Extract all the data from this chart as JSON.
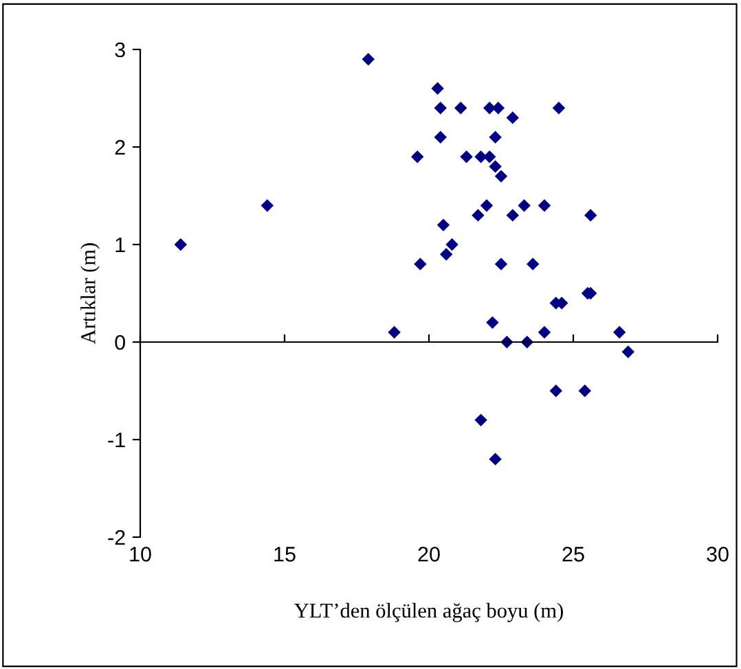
{
  "chart_data": {
    "type": "scatter",
    "xlabel": "YLT’den ölçülen ağaç boyu (m)",
    "ylabel": "Artıklar (m)",
    "series": [
      {
        "color": "#000080",
        "x": [
          11.4,
          14.4,
          17.9,
          18.8,
          19.6,
          19.7,
          20.3,
          20.4,
          20.4,
          20.5,
          20.6,
          20.8,
          21.1,
          21.3,
          21.7,
          21.8,
          21.8,
          22.0,
          22.1,
          22.1,
          22.2,
          22.3,
          22.3,
          22.4,
          22.5,
          22.5,
          22.3,
          22.7,
          22.9,
          22.9,
          23.3,
          23.4,
          23.6,
          24.0,
          24.0,
          24.4,
          24.4,
          24.6,
          24.5,
          25.4,
          25.5,
          25.6,
          25.6,
          26.6,
          26.9
        ],
        "values": [
          1.0,
          1.4,
          2.9,
          0.1,
          1.9,
          0.8,
          2.6,
          2.1,
          2.4,
          1.2,
          0.9,
          1.0,
          2.4,
          1.9,
          1.3,
          1.9,
          -0.8,
          1.4,
          2.4,
          1.9,
          0.2,
          1.8,
          2.1,
          2.4,
          1.7,
          0.8,
          -1.2,
          0.0,
          2.3,
          1.3,
          1.4,
          0.0,
          0.8,
          1.4,
          0.1,
          0.4,
          -0.5,
          0.4,
          2.4,
          -0.5,
          0.5,
          0.5,
          1.3,
          0.1,
          -0.1
        ]
      }
    ],
    "xlim": [
      10,
      30
    ],
    "xticks": [
      10,
      15,
      20,
      25,
      30
    ],
    "ylim": [
      -2,
      3
    ],
    "yticks": [
      -2,
      -1,
      0,
      1,
      2,
      3
    ],
    "marker": "diamond"
  }
}
